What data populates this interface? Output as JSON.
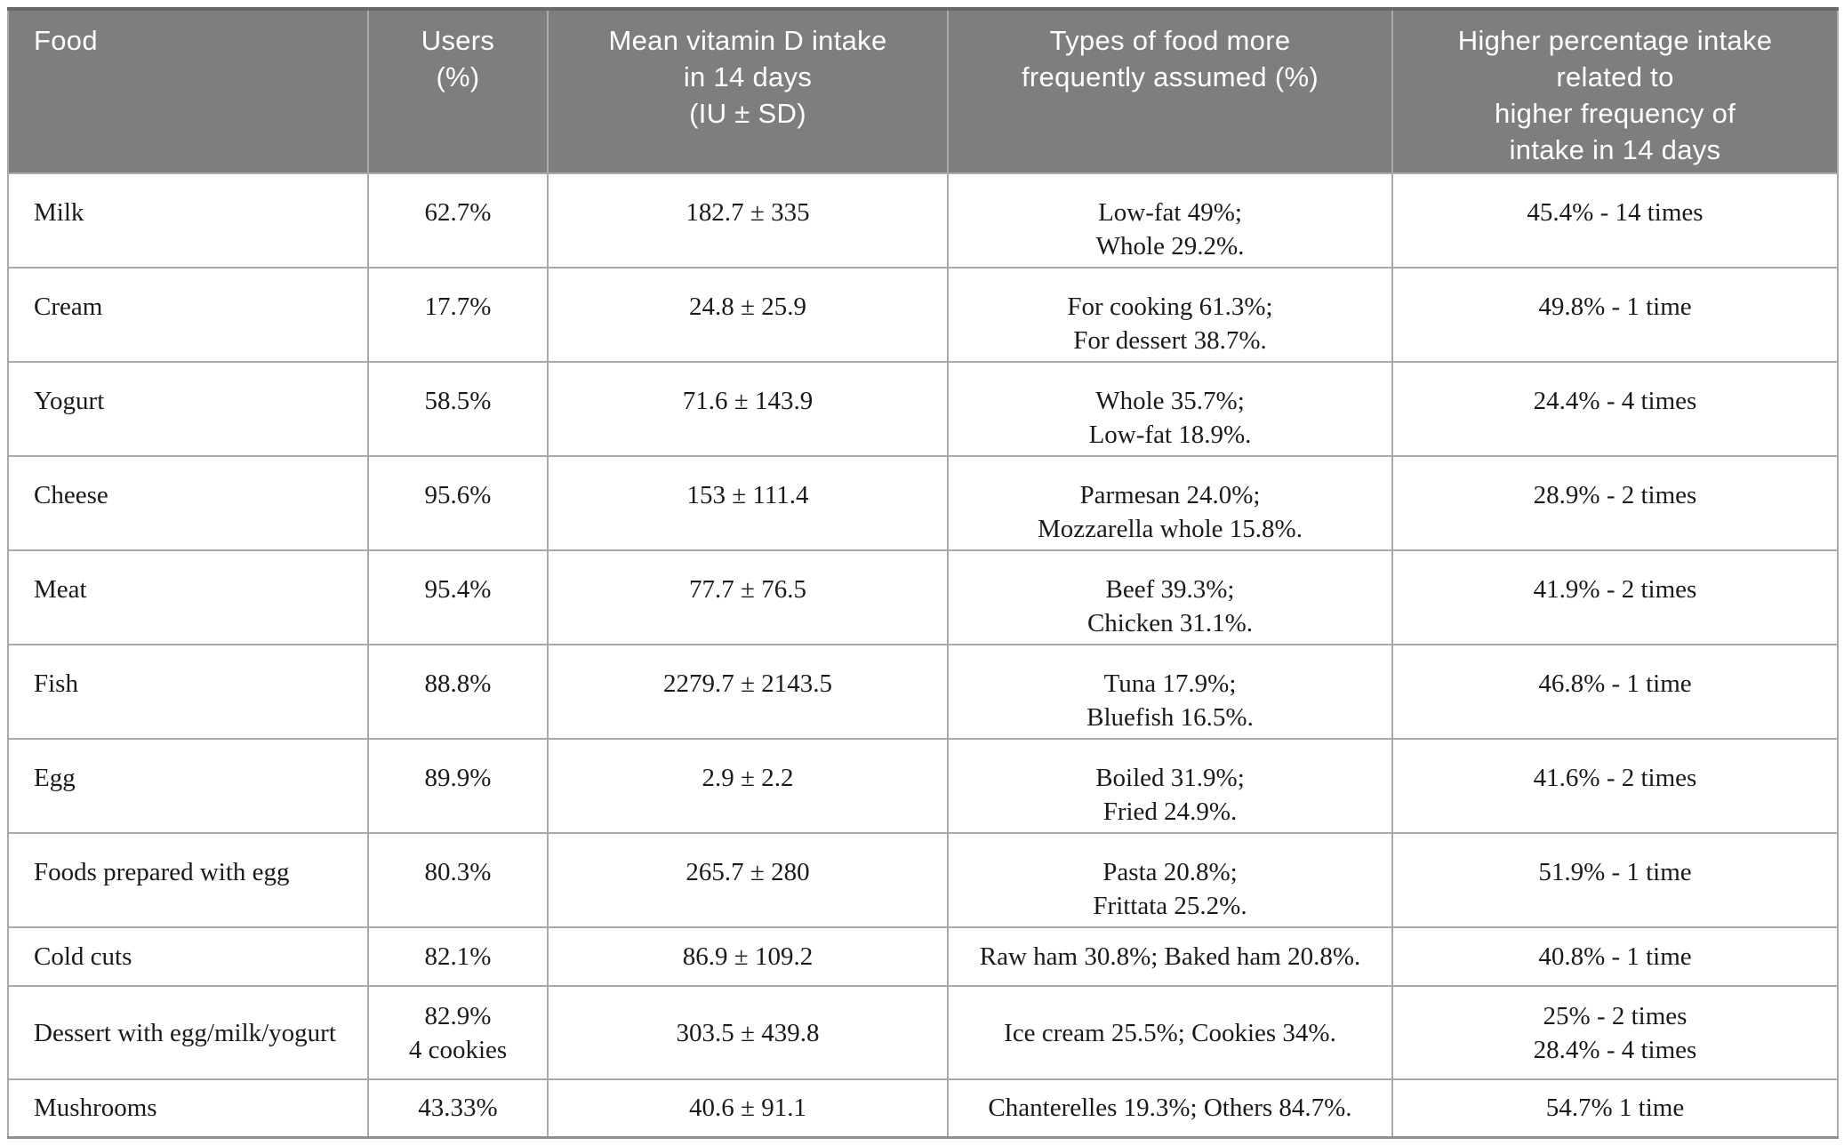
{
  "header": {
    "food": [
      "Food"
    ],
    "users": [
      "Users",
      "(%)"
    ],
    "mean": [
      "Mean vitamin D intake",
      "in 14 days",
      "(IU ± SD)"
    ],
    "types": [
      "Types of food more",
      "frequently assumed (%)"
    ],
    "higher": [
      "Higher percentage intake",
      "related to",
      "higher frequency of",
      "intake in 14 days"
    ]
  },
  "rows": [
    {
      "food": "Milk",
      "users": [
        "62.7%"
      ],
      "mean": "182.7 ± 335",
      "types": [
        "Low-fat 49%;",
        "Whole 29.2%."
      ],
      "higher": [
        "45.4% - 14 times"
      ]
    },
    {
      "food": "Cream",
      "users": [
        "17.7%"
      ],
      "mean": "24.8 ± 25.9",
      "types": [
        "For cooking 61.3%;",
        "For dessert 38.7%."
      ],
      "higher": [
        "49.8% - 1 time"
      ]
    },
    {
      "food": "Yogurt",
      "users": [
        "58.5%"
      ],
      "mean": "71.6 ± 143.9",
      "types": [
        "Whole 35.7%;",
        "Low-fat 18.9%."
      ],
      "higher": [
        "24.4% - 4 times"
      ]
    },
    {
      "food": "Cheese",
      "users": [
        "95.6%"
      ],
      "mean": "153 ± 111.4",
      "types": [
        "Parmesan 24.0%;",
        "Mozzarella whole 15.8%."
      ],
      "higher": [
        "28.9% - 2 times"
      ]
    },
    {
      "food": "Meat",
      "users": [
        "95.4%"
      ],
      "mean": "77.7 ± 76.5",
      "types": [
        "Beef 39.3%;",
        "Chicken 31.1%."
      ],
      "higher": [
        "41.9% - 2 times"
      ]
    },
    {
      "food": "Fish",
      "users": [
        "88.8%"
      ],
      "mean": "2279.7 ± 2143.5",
      "types": [
        "Tuna 17.9%;",
        "Bluefish 16.5%."
      ],
      "higher": [
        "46.8% - 1 time"
      ]
    },
    {
      "food": "Egg",
      "users": [
        "89.9%"
      ],
      "mean": "2.9 ± 2.2",
      "types": [
        "Boiled 31.9%;",
        "Fried 24.9%."
      ],
      "higher": [
        "41.6% - 2 times"
      ]
    },
    {
      "food": "Foods prepared with egg",
      "users": [
        "80.3%"
      ],
      "mean": "265.7 ± 280",
      "types": [
        "Pasta 20.8%;",
        "Frittata 25.2%."
      ],
      "higher": [
        "51.9% - 1 time"
      ]
    },
    {
      "food": "Cold cuts",
      "users": [
        "82.1%"
      ],
      "mean": "86.9 ± 109.2",
      "types": [
        "Raw ham 30.8%; Baked ham 20.8%."
      ],
      "higher": [
        "40.8% - 1 time"
      ]
    },
    {
      "food": "Dessert with egg/milk/yogurt",
      "users": [
        "82.9%",
        "4 cookies"
      ],
      "mean": "303.5 ± 439.8",
      "types": [
        "Ice cream 25.5%; Cookies 34%."
      ],
      "higher": [
        "25% - 2 times",
        "28.4% - 4 times"
      ]
    },
    {
      "food": "Mushrooms",
      "users": [
        "43.33%"
      ],
      "mean": "40.6 ± 91.1",
      "types": [
        "Chanterelles 19.3%; Others 84.7%."
      ],
      "higher": [
        "54.7% 1 time"
      ]
    }
  ]
}
